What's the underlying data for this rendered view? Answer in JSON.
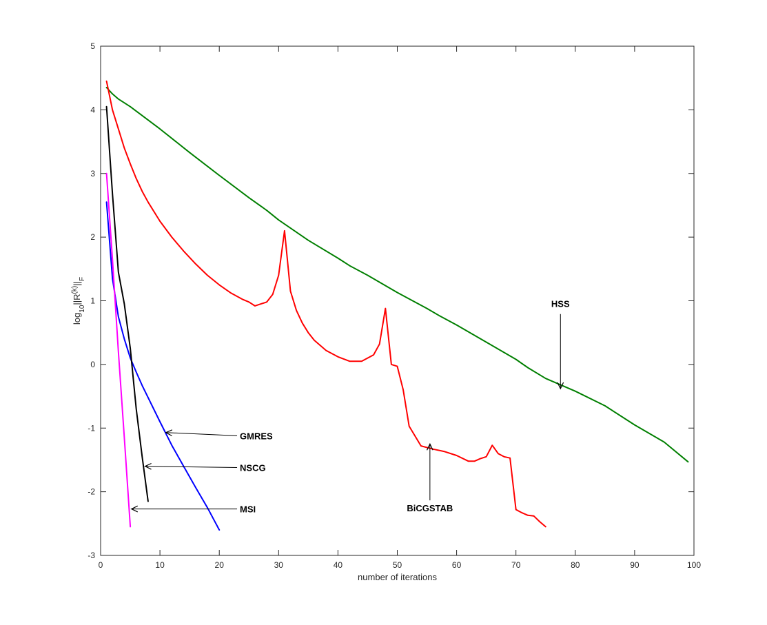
{
  "chart_data": {
    "type": "line",
    "title": "",
    "xlabel": "number of iterations",
    "ylabel": {
      "base": "log",
      "sub": "10",
      "mid": "||R",
      "sup": "(k)",
      "end": "||",
      "sub2": "F"
    },
    "xlim": [
      0,
      100
    ],
    "ylim": [
      -3,
      5
    ],
    "xticks": [
      "0",
      "10",
      "20",
      "30",
      "40",
      "50",
      "60",
      "70",
      "80",
      "90",
      "100"
    ],
    "yticks": [
      "-3",
      "-2",
      "-1",
      "0",
      "1",
      "2",
      "3",
      "4",
      "5"
    ],
    "grid": false,
    "series": [
      {
        "name": "HSS",
        "color": "#007f00",
        "x": [
          1,
          2,
          3,
          5,
          10,
          15,
          20,
          25,
          28,
          30,
          35,
          40,
          42,
          45,
          50,
          55,
          57,
          60,
          65,
          70,
          72,
          75,
          80,
          85,
          90,
          95,
          99
        ],
        "y": [
          4.35,
          4.25,
          4.17,
          4.05,
          3.7,
          3.33,
          2.97,
          2.62,
          2.42,
          2.27,
          1.95,
          1.67,
          1.55,
          1.4,
          1.13,
          0.88,
          0.77,
          0.62,
          0.35,
          0.08,
          -0.05,
          -0.22,
          -0.42,
          -0.65,
          -0.95,
          -1.22,
          -1.53
        ]
      },
      {
        "name": "BiCGSTAB",
        "color": "#ff0000",
        "x": [
          1,
          2,
          3,
          4,
          5,
          6,
          7,
          8,
          10,
          12,
          14,
          16,
          18,
          20,
          22,
          24,
          25,
          26,
          27,
          28,
          29,
          30,
          31,
          32,
          33,
          34,
          35,
          36,
          38,
          40,
          42,
          44,
          46,
          47,
          48,
          49,
          50,
          51,
          52,
          54,
          56,
          58,
          60,
          62,
          63,
          64,
          65,
          66,
          67,
          68,
          69,
          70,
          71,
          72,
          73,
          74,
          75
        ],
        "y": [
          4.45,
          4.0,
          3.7,
          3.4,
          3.15,
          2.92,
          2.72,
          2.55,
          2.25,
          2.0,
          1.78,
          1.58,
          1.4,
          1.25,
          1.12,
          1.02,
          0.98,
          0.92,
          0.95,
          0.98,
          1.1,
          1.4,
          2.1,
          1.15,
          0.85,
          0.65,
          0.5,
          0.38,
          0.22,
          0.12,
          0.05,
          0.05,
          0.15,
          0.32,
          0.88,
          0.0,
          -0.03,
          -0.4,
          -0.97,
          -1.28,
          -1.33,
          -1.37,
          -1.43,
          -1.52,
          -1.52,
          -1.48,
          -1.45,
          -1.27,
          -1.4,
          -1.45,
          -1.47,
          -2.28,
          -2.33,
          -2.37,
          -2.38,
          -2.47,
          -2.55
        ]
      },
      {
        "name": "GMRES",
        "color": "#0000ff",
        "x": [
          1,
          2,
          3,
          4,
          5,
          6,
          7,
          8,
          10,
          12,
          14,
          16,
          18,
          20
        ],
        "y": [
          2.55,
          1.35,
          0.75,
          0.4,
          0.1,
          -0.12,
          -0.33,
          -0.52,
          -0.9,
          -1.27,
          -1.6,
          -1.93,
          -2.25,
          -2.6
        ]
      },
      {
        "name": "NSCG",
        "color": "#000000",
        "x": [
          1,
          2,
          3,
          4,
          5,
          6,
          7,
          8
        ],
        "y": [
          4.05,
          2.68,
          1.45,
          0.95,
          0.25,
          -0.7,
          -1.45,
          -2.15
        ]
      },
      {
        "name": "MSI",
        "color": "#ff00ff",
        "x": [
          1,
          2,
          3,
          4,
          5
        ],
        "y": [
          3.0,
          1.65,
          0.2,
          -1.15,
          -2.55
        ]
      }
    ],
    "annotations": [
      {
        "text": "HSS",
        "text_at": [
          77.5,
          0.9
        ],
        "arrow_tip": [
          77.5,
          -0.38
        ]
      },
      {
        "text": "GMRES",
        "text_at": [
          23,
          -1.12
        ],
        "arrow_tip": [
          11,
          -1.07
        ]
      },
      {
        "text": "NSCG",
        "text_at": [
          23,
          -1.62
        ],
        "arrow_tip": [
          7.5,
          -1.6
        ]
      },
      {
        "text": "MSI",
        "text_at": [
          23,
          -2.27
        ],
        "arrow_tip": [
          5.2,
          -2.27
        ]
      },
      {
        "text": "BiCGSTAB",
        "text_at": [
          55.5,
          -2.2
        ],
        "arrow_tip": [
          55.5,
          -1.25
        ]
      }
    ]
  }
}
